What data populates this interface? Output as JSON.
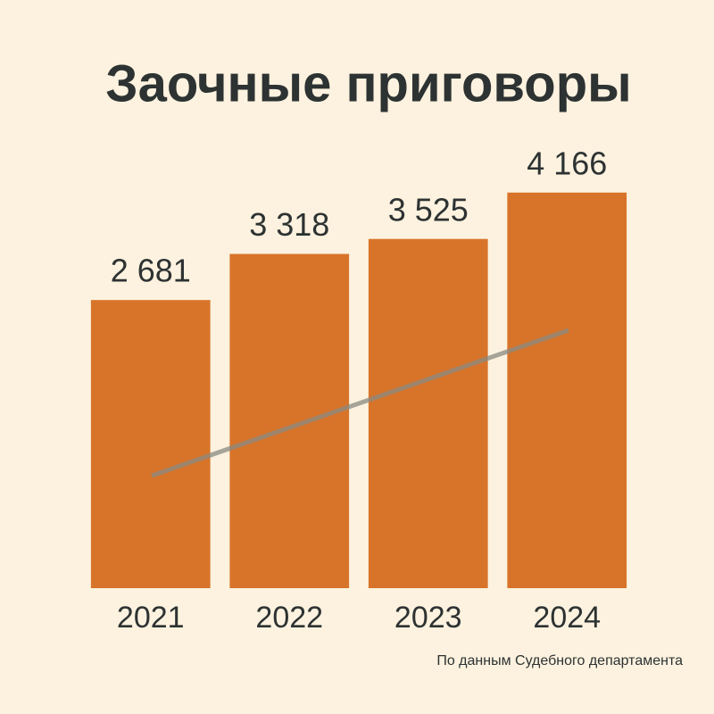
{
  "chart_data": {
    "type": "bar",
    "title": "Заочные приговоры",
    "categories": [
      "2021",
      "2022",
      "2023",
      "2024"
    ],
    "values": [
      2681,
      3318,
      3525,
      4166
    ],
    "value_labels": [
      "2 681",
      "3 318",
      "3 525",
      "4 166"
    ],
    "color": "#d8742a",
    "ylim": [
      -1300,
      4200
    ],
    "source": "По данным Судебного департамента"
  }
}
